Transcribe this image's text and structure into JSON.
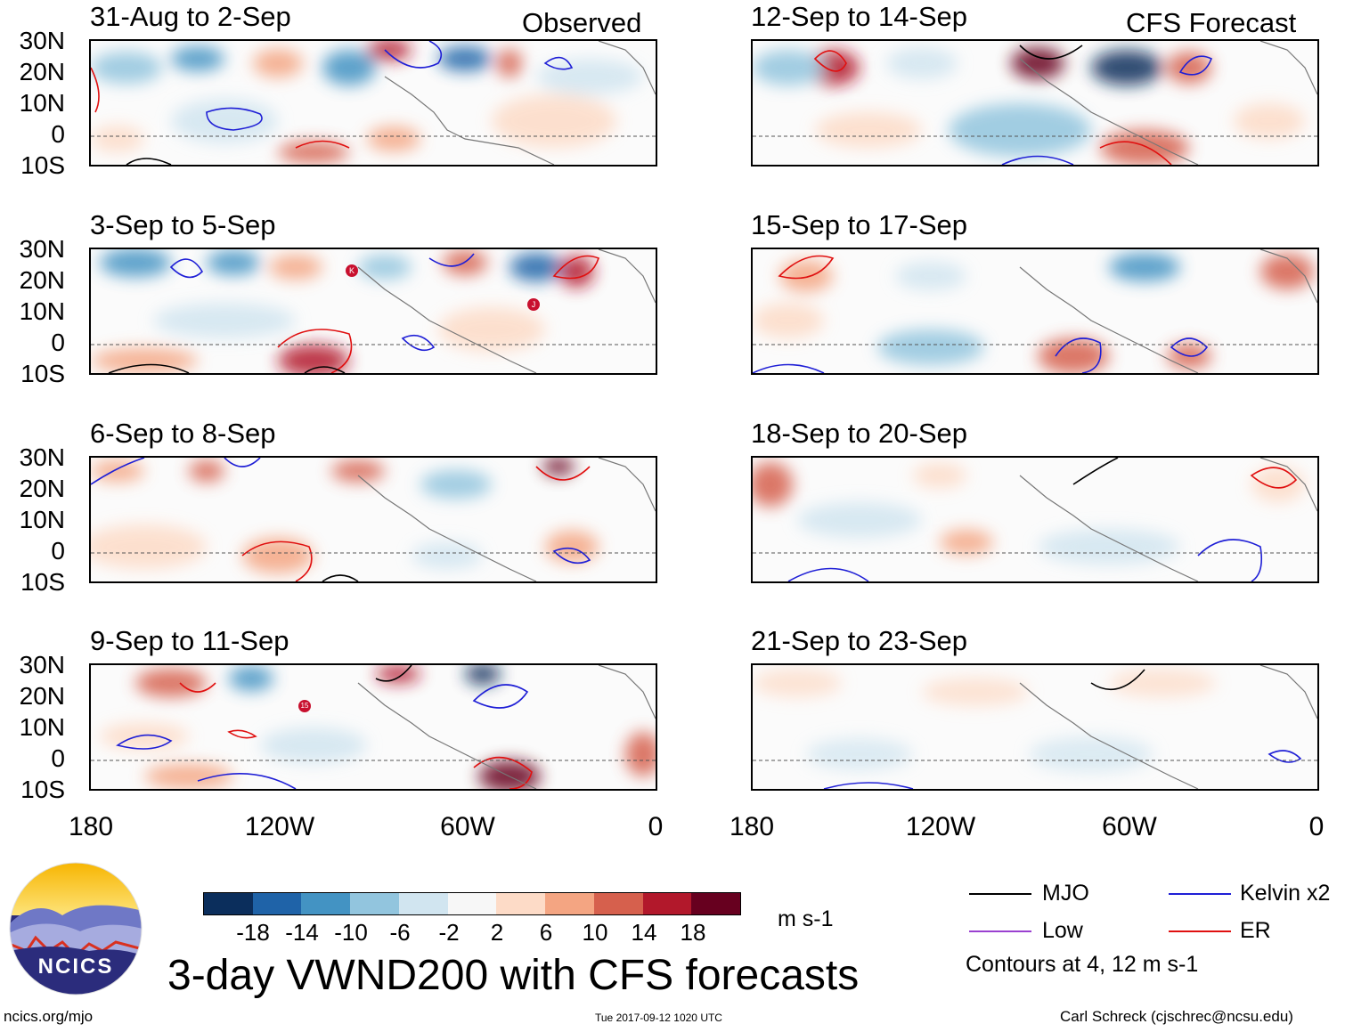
{
  "figure": {
    "title": "3-day VWND200 with CFS forecasts",
    "website": "ncics.org/mjo",
    "timestamp": "Tue 2017-09-12 1020 UTC",
    "author": "Carl Schreck (cjschrec@ncsu.edu)",
    "logo_text": "NCICS"
  },
  "sections": {
    "observed": "Observed",
    "forecast": "CFS Forecast"
  },
  "panels": {
    "observed": [
      {
        "period": "31-Aug to 2-Sep"
      },
      {
        "period": "3-Sep to 5-Sep",
        "storm_markers": [
          "K",
          "J"
        ]
      },
      {
        "period": "6-Sep to 8-Sep"
      },
      {
        "period": "9-Sep to 11-Sep",
        "storm_markers": [
          "15"
        ]
      }
    ],
    "forecast": [
      {
        "period": "12-Sep to 14-Sep"
      },
      {
        "period": "15-Sep to 17-Sep"
      },
      {
        "period": "18-Sep to 20-Sep"
      },
      {
        "period": "21-Sep to 23-Sep"
      }
    ]
  },
  "axes": {
    "lat_labels": [
      "30N",
      "20N",
      "10N",
      "0",
      "10S"
    ],
    "lon_labels": [
      "180",
      "120W",
      "60W",
      "0"
    ]
  },
  "colorbar": {
    "unit": "m s-1",
    "tick_labels": [
      "-18",
      "-14",
      "-10",
      "-6",
      "-2",
      "2",
      "6",
      "10",
      "14",
      "18"
    ],
    "colors": [
      "#0b2e5c",
      "#1f63a8",
      "#4393c3",
      "#92c5de",
      "#d1e5f0",
      "#f7f7f7",
      "#fddbc7",
      "#f4a582",
      "#d6604d",
      "#b2182b",
      "#67001f"
    ]
  },
  "legend": {
    "items": [
      {
        "label": "MJO",
        "color": "#000000"
      },
      {
        "label": "Kelvin x2",
        "color": "#1f1fd6"
      },
      {
        "label": "Low",
        "color": "#9a40d0"
      },
      {
        "label": "ER",
        "color": "#e01010"
      }
    ],
    "note": "Contours at 4, 12 m s-1"
  }
}
